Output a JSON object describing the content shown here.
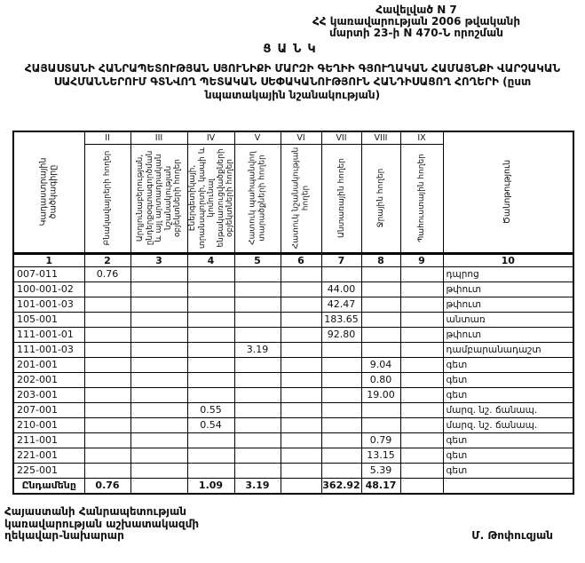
{
  "page": {
    "appendix_lines": [
      "Հավելված N 7",
      "ՀՀ կառավարության 2006 թվականի",
      "մարտի 23-ի N 470-Ն որոշման"
    ],
    "title": "ՑԱՆԿ",
    "subtitle_lines": [
      "ՀԱՅԱՍՏԱՆԻ ՀԱՆՐԱՊԵՏՈՒԹՅԱՆ ՍՅՈՒՆԻՔԻ ՄԱՐԶԻ ԳԵՂԻԻ ԳՅՈՒՂԱԿԱՆ ՀԱՄԱՅՆՔԻ ՎԱՐՉԱԿԱՆ",
      "ՍԱՀՄԱՆՆԵՐՈՒՄ ԳՏՆՎՈՂ ՊԵՏԱԿԱՆ ՍԵՓԱԿԱՆՈՒԹՅՈՒՆ ՀԱՆԴԻՍԱՑՈՂ ՀՈՂԵՐԻ (ըստ",
      "նպատակային նշանակության)"
    ]
  },
  "table": {
    "corner_header": "Կադաստրային ծածկագիրը",
    "note_header": "Ծանոթություն",
    "roman_numerals": [
      "II",
      "III",
      "IV",
      "V",
      "VI",
      "VII",
      "VIII",
      "IX"
    ],
    "column_headers": [
      "Բնակավայրերի հողեր",
      "Արդյունաբերության, ընդերքօգտագործման և այլ արտադրական նշանակության օբյեկտների հողեր",
      "Էներգետիկայի, տրանսպորտի, կապի և կոմունալ ենթակառուցվածքների օբյեկտների հողեր",
      "Հատուկ պահպանվող տարածքների հողեր",
      "Հատուկ նշանակության հողեր",
      "Անտառային հողեր",
      "Ջրային հողեր",
      "Պահուստային հողեր"
    ],
    "column_numbers": [
      "1",
      "2",
      "3",
      "4",
      "5",
      "6",
      "7",
      "8",
      "9",
      "10"
    ],
    "rows": [
      {
        "code": "007-011",
        "values": [
          "0.76",
          "",
          "",
          "",
          "",
          "",
          "",
          ""
        ],
        "note": "դպրոց"
      },
      {
        "code": "100-001-02",
        "values": [
          "",
          "",
          "",
          "",
          "",
          "44.00",
          "",
          ""
        ],
        "note": "թփուտ"
      },
      {
        "code": "101-001-03",
        "values": [
          "",
          "",
          "",
          "",
          "",
          "42.47",
          "",
          ""
        ],
        "note": "թփուտ"
      },
      {
        "code": "105-001",
        "values": [
          "",
          "",
          "",
          "",
          "",
          "183.65",
          "",
          ""
        ],
        "note": "անտառ"
      },
      {
        "code": "111-001-01",
        "values": [
          "",
          "",
          "",
          "",
          "",
          "92.80",
          "",
          ""
        ],
        "note": "թփուտ"
      },
      {
        "code": "111-001-03",
        "values": [
          "",
          "",
          "",
          "3.19",
          "",
          "",
          "",
          ""
        ],
        "note": "դամբարանադաշտ"
      },
      {
        "code": "201-001",
        "values": [
          "",
          "",
          "",
          "",
          "",
          "",
          "9.04",
          ""
        ],
        "note": "գետ"
      },
      {
        "code": "202-001",
        "values": [
          "",
          "",
          "",
          "",
          "",
          "",
          "0.80",
          ""
        ],
        "note": "գետ"
      },
      {
        "code": "203-001",
        "values": [
          "",
          "",
          "",
          "",
          "",
          "",
          "19.00",
          ""
        ],
        "note": "գետ"
      },
      {
        "code": "207-001",
        "values": [
          "",
          "",
          "0.55",
          "",
          "",
          "",
          "",
          ""
        ],
        "note": "մարզ. նշ. ճանապ."
      },
      {
        "code": "210-001",
        "values": [
          "",
          "",
          "0.54",
          "",
          "",
          "",
          "",
          ""
        ],
        "note": "մարզ. նշ. ճանապ."
      },
      {
        "code": "211-001",
        "values": [
          "",
          "",
          "",
          "",
          "",
          "",
          "0.79",
          ""
        ],
        "note": "գետ"
      },
      {
        "code": "221-001",
        "values": [
          "",
          "",
          "",
          "",
          "",
          "",
          "13.15",
          ""
        ],
        "note": "գետ"
      },
      {
        "code": "225-001",
        "values": [
          "",
          "",
          "",
          "",
          "",
          "",
          "5.39",
          ""
        ],
        "note": "գետ"
      }
    ],
    "total": {
      "label": "Ընդամենը",
      "values": [
        "0.76",
        "",
        "1.09",
        "3.19",
        "",
        "362.92",
        "48.17",
        ""
      ],
      "note": ""
    }
  },
  "footer": {
    "left_lines": [
      "Հայաստանի Հանրապետության",
      "կառավարության աշխատակազմի",
      "ղեկավար-նախարար"
    ],
    "signature": "Մ. Թոփուզյան"
  }
}
